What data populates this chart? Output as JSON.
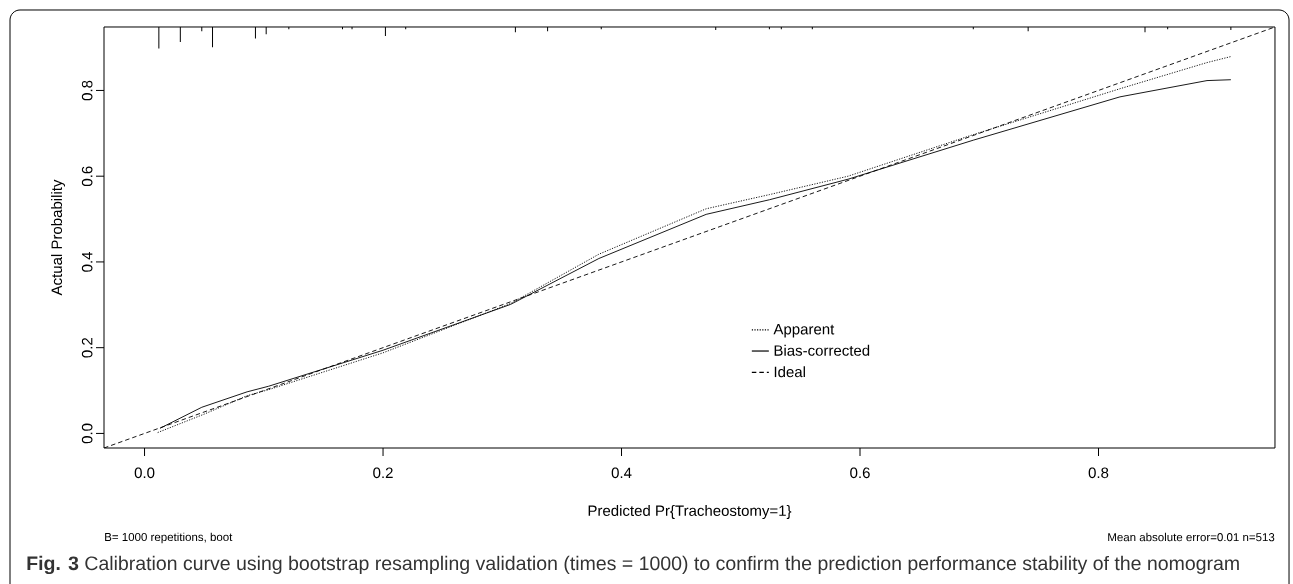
{
  "chart_data": {
    "type": "line",
    "xlabel": "Predicted Pr{Tracheostomy=1}",
    "ylabel": "Actual Probability",
    "annotations": [
      "B= 1000 repetitions, boot",
      "Mean absolute error=0.01 n=513",
      "**Fig. 3**  Calibration curve using bootstrap resampling validation (times = 1000) to confirm the prediction performance stability of the nomogram"
    ],
    "xlim": [
      -0.034,
      0.948
    ],
    "ylim": [
      -0.034,
      0.948
    ],
    "xticks": [
      {
        "value": 0,
        "label": "0.0"
      },
      {
        "value": 0.2,
        "label": "0.2"
      },
      {
        "value": 0.4,
        "label": "0.4"
      },
      {
        "value": 0.6,
        "label": "0.6"
      },
      {
        "value": 0.8,
        "label": "0.8"
      }
    ],
    "yticks": [
      {
        "value": 0,
        "label": "0.0"
      },
      {
        "value": 0.2,
        "label": "0.2"
      },
      {
        "value": 0.4,
        "label": "0.4"
      },
      {
        "value": 0.6,
        "label": "0.6"
      },
      {
        "value": 0.8,
        "label": "0.8"
      }
    ],
    "legend": "bottom right",
    "marker": "none",
    "series": [
      {
        "name": "Apparent",
        "color": "#000000",
        "line_style": "dotted",
        "x": [
          0.011,
          0.05,
          0.086,
          0.104,
          0.2,
          0.307,
          0.381,
          0.471,
          0.524,
          0.59,
          0.695,
          0.818,
          0.891,
          0.911
        ],
        "values": [
          0.002,
          0.045,
          0.088,
          0.102,
          0.188,
          0.303,
          0.418,
          0.524,
          0.557,
          0.6,
          0.697,
          0.804,
          0.865,
          0.879
        ]
      },
      {
        "name": "Bias-corrected",
        "color": "#000000",
        "line_style": "solid",
        "x": [
          0.013,
          0.048,
          0.086,
          0.104,
          0.2,
          0.307,
          0.381,
          0.471,
          0.524,
          0.59,
          0.695,
          0.818,
          0.891,
          0.911
        ],
        "values": [
          0.012,
          0.061,
          0.097,
          0.11,
          0.194,
          0.301,
          0.408,
          0.511,
          0.545,
          0.593,
          0.684,
          0.785,
          0.823,
          0.825
        ]
      },
      {
        "name": "Ideal",
        "color": "#000000",
        "line_style": "dashed",
        "x": [
          -0.034,
          0.948
        ],
        "values": [
          -0.034,
          0.948
        ]
      },
      {
        "type": "bar",
        "color": "#000000",
        "x": [
          0.012,
          0.03,
          0.048,
          0.057,
          0.093,
          0.102,
          0.121,
          0.166,
          0.174,
          0.202,
          0.219,
          0.311,
          0.338,
          0.383,
          0.479,
          0.524,
          0.534,
          0.56,
          0.695,
          0.741,
          0.839,
          0.858,
          0.911
        ],
        "values": [
          -0.05,
          -0.035,
          -0.01,
          -0.047,
          -0.027,
          -0.017,
          -0.005,
          -0.005,
          -0.005,
          -0.021,
          -0.005,
          -0.012,
          -0.01,
          -0.005,
          -0.007,
          -0.005,
          -0.005,
          -0.005,
          -0.005,
          -0.01,
          -0.012,
          -0.005,
          -0.007
        ],
        "base": [
          0.948,
          0.948,
          0.948,
          0.948,
          0.948,
          0.948,
          0.948,
          0.948,
          0.948,
          0.948,
          0.948,
          0.948,
          0.948,
          0.948,
          0.948,
          0.948,
          0.948,
          0.948,
          0.948,
          0.948,
          0.948,
          0.948,
          0.948
        ]
      }
    ]
  }
}
